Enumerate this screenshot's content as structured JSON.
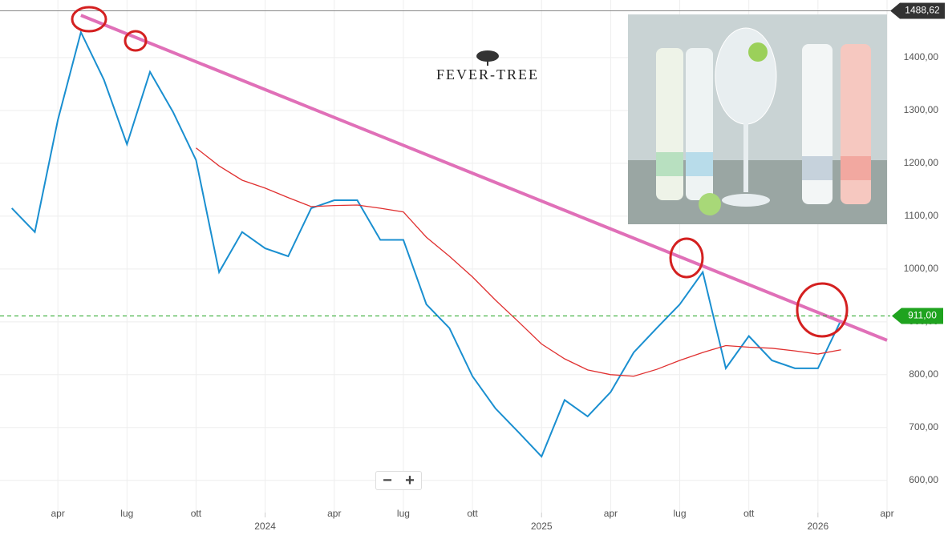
{
  "chart_data": {
    "type": "line",
    "logo_text": "FEVER-TREE",
    "x": [
      "2023-02",
      "2023-03",
      "2023-04",
      "2023-05",
      "2023-06",
      "2023-07",
      "2023-08",
      "2023-09",
      "2023-10",
      "2023-11",
      "2023-12",
      "2024-01",
      "2024-02",
      "2024-03",
      "2024-04",
      "2024-05",
      "2024-06",
      "2024-07",
      "2024-08",
      "2024-09",
      "2024-10",
      "2024-11",
      "2024-12",
      "2025-01",
      "2025-02",
      "2025-03",
      "2025-04",
      "2025-05",
      "2025-06",
      "2025-07",
      "2025-08",
      "2025-09",
      "2025-10",
      "2025-11",
      "2025-12",
      "2026-01",
      "2026-02"
    ],
    "series": [
      {
        "name": "Price",
        "color": "#1a8fd0",
        "values": [
          1115,
          1070,
          1282,
          1448,
          1358,
          1236,
          1373,
          1297,
          1206,
          994,
          1070,
          1039,
          1024,
          1115,
          1130,
          1130,
          1055,
          1055,
          933,
          888,
          797,
          736,
          691,
          645,
          752,
          721,
          767,
          842,
          888,
          933,
          994,
          812,
          873,
          827,
          812,
          812,
          903
        ]
      },
      {
        "name": "Moving average",
        "color": "#e03030",
        "values": [
          null,
          null,
          null,
          null,
          null,
          null,
          null,
          null,
          1229,
          1195,
          1168,
          1153,
          1135,
          1118,
          1120,
          1121,
          1115,
          1108,
          1060,
          1024,
          985,
          941,
          900,
          858,
          830,
          809,
          800,
          797,
          810,
          827,
          842,
          855,
          852,
          850,
          845,
          839,
          847
        ]
      }
    ],
    "trendline": {
      "color": "#e070b8",
      "x": [
        "2023-05",
        "2026-04"
      ],
      "values": [
        1480,
        865
      ]
    },
    "max_marker": {
      "value": 1488.62,
      "label": "1488,62"
    },
    "last_marker": {
      "value": 911,
      "label": "911,00",
      "color": "#1fa31f"
    },
    "xlim": [
      "2023-01",
      "2026-04"
    ],
    "ylim": [
      539,
      1509
    ],
    "yticks": [
      {
        "value": 600,
        "label": "600,00"
      },
      {
        "value": 700,
        "label": "700,00"
      },
      {
        "value": 800,
        "label": "800,00"
      },
      {
        "value": 900,
        "label": "900,00"
      },
      {
        "value": 1000,
        "label": "1000,00"
      },
      {
        "value": 1100,
        "label": "1100,00"
      },
      {
        "value": 1200,
        "label": "1200,00"
      },
      {
        "value": 1300,
        "label": "1300,00"
      },
      {
        "value": 1400,
        "label": "1400,00"
      }
    ],
    "xticks": [
      {
        "value": "2023-04",
        "label": "apr"
      },
      {
        "value": "2023-07",
        "label": "lug"
      },
      {
        "value": "2023-10",
        "label": "ott"
      },
      {
        "value": "2024-01",
        "label": "2024"
      },
      {
        "value": "2024-04",
        "label": "apr"
      },
      {
        "value": "2024-07",
        "label": "lug"
      },
      {
        "value": "2024-10",
        "label": "ott"
      },
      {
        "value": "2025-01",
        "label": "2025"
      },
      {
        "value": "2025-04",
        "label": "apr"
      },
      {
        "value": "2025-07",
        "label": "lug"
      },
      {
        "value": "2025-10",
        "label": "ott"
      },
      {
        "value": "2026-01",
        "label": "2026"
      },
      {
        "value": "2026-04",
        "label": "apr"
      }
    ],
    "grid": true,
    "zoom_controls": [
      "−",
      "+"
    ]
  }
}
